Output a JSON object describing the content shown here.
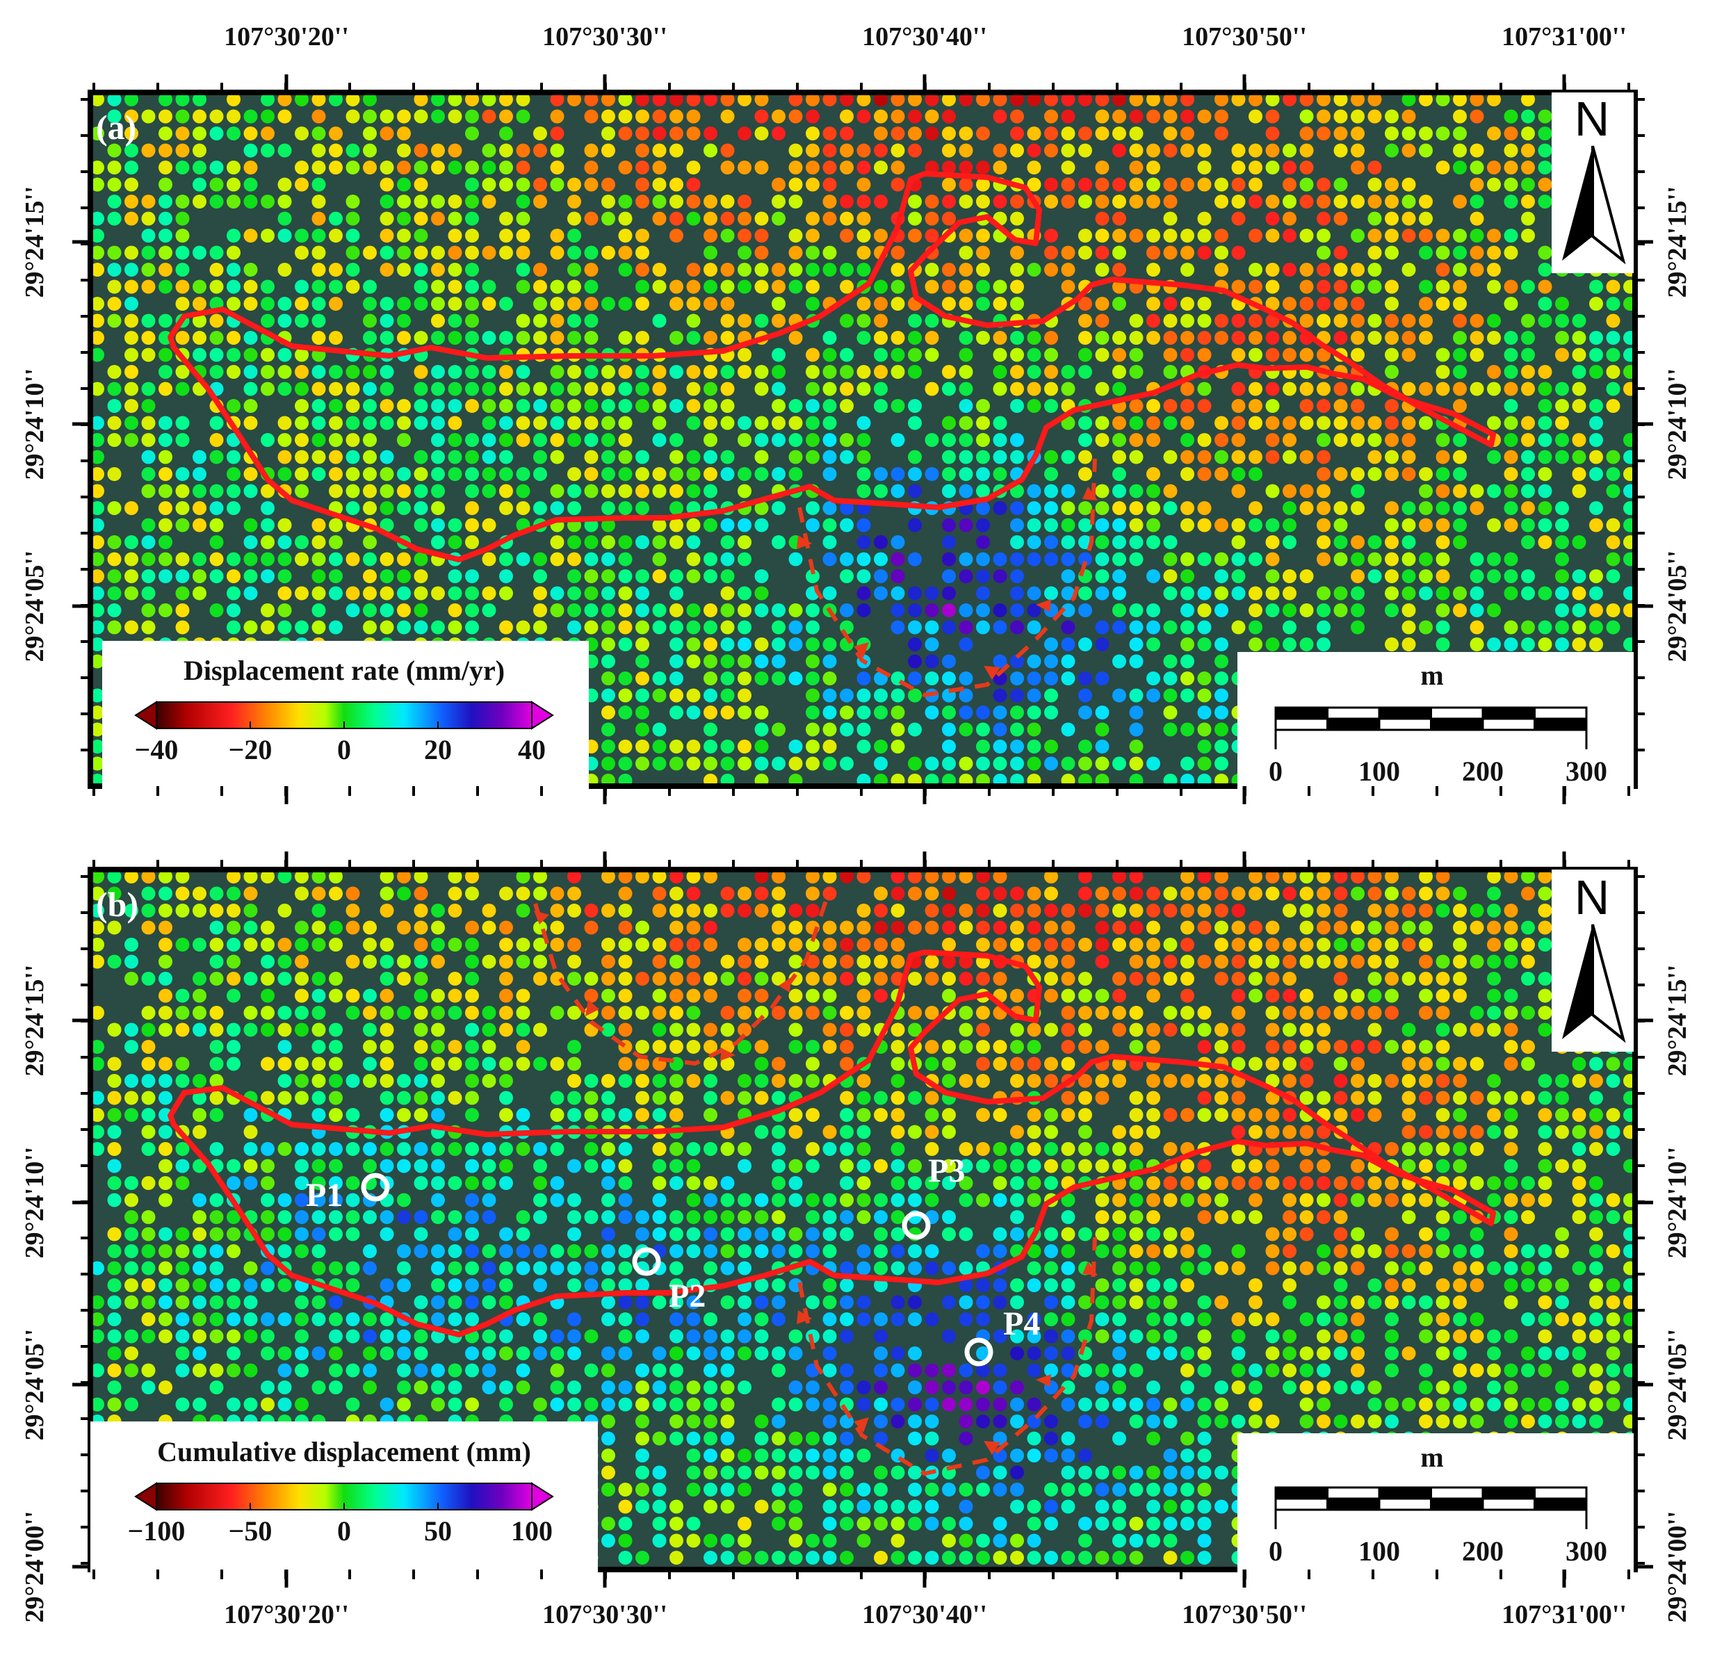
{
  "figure": {
    "x_ticks": [
      "107°30'20''",
      "107°30'30''",
      "107°30'40''",
      "107°30'50''",
      "107°31'00''"
    ],
    "colors": {
      "boundary": "#ff1a1a",
      "arrow": "#e83a1a",
      "frame": "#000000",
      "background_imagery": "#2a4a44"
    }
  },
  "panels": [
    {
      "id": "a",
      "label": "(a)",
      "y_ticks": [
        "29°24'15''",
        "29°24'10''",
        "29°24'05''"
      ],
      "colorbar": {
        "title": "Displacement rate (mm/yr)",
        "ticks": [
          "−40",
          "−20",
          "0",
          "20",
          "40"
        ],
        "min": -40,
        "max": 40
      },
      "scalebar": {
        "unit": "m",
        "ticks": [
          "0",
          "100",
          "200",
          "300"
        ]
      },
      "north": "N",
      "points": []
    },
    {
      "id": "b",
      "label": "(b)",
      "y_ticks": [
        "29°24'15''",
        "29°24'10''",
        "29°24'05''",
        "29°24'00''"
      ],
      "colorbar": {
        "title": "Cumulative displacement (mm)",
        "ticks": [
          "−100",
          "−50",
          "0",
          "50",
          "100"
        ],
        "min": -100,
        "max": 100
      },
      "scalebar": {
        "unit": "m",
        "ticks": [
          "0",
          "100",
          "200",
          "300"
        ]
      },
      "north": "N",
      "points": [
        {
          "label": "P1"
        },
        {
          "label": "P2"
        },
        {
          "label": "P3"
        },
        {
          "label": "P4"
        }
      ]
    }
  ]
}
